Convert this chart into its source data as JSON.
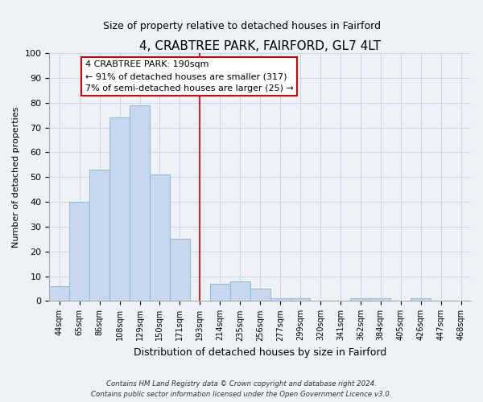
{
  "title": "4, CRABTREE PARK, FAIRFORD, GL7 4LT",
  "subtitle": "Size of property relative to detached houses in Fairford",
  "xlabel": "Distribution of detached houses by size in Fairford",
  "ylabel": "Number of detached properties",
  "bar_labels": [
    "44sqm",
    "65sqm",
    "86sqm",
    "108sqm",
    "129sqm",
    "150sqm",
    "171sqm",
    "193sqm",
    "214sqm",
    "235sqm",
    "256sqm",
    "277sqm",
    "299sqm",
    "320sqm",
    "341sqm",
    "362sqm",
    "384sqm",
    "405sqm",
    "426sqm",
    "447sqm",
    "468sqm"
  ],
  "bar_heights": [
    6,
    40,
    53,
    74,
    79,
    51,
    25,
    0,
    7,
    8,
    5,
    1,
    1,
    0,
    0,
    1,
    1,
    0,
    1,
    0,
    0
  ],
  "bar_color": "#c5d8ee",
  "bar_edge_color": "#9ab8d8",
  "vline_index": 7,
  "vline_color": "#cc0000",
  "annotation_title": "4 CRABTREE PARK: 190sqm",
  "annotation_line1": "← 91% of detached houses are smaller (317)",
  "annotation_line2": "7% of semi-detached houses are larger (25) →",
  "annotation_box_color": "#ffffff",
  "annotation_box_edge": "#cc0000",
  "ylim": [
    0,
    100
  ],
  "yticks": [
    0,
    10,
    20,
    30,
    40,
    50,
    60,
    70,
    80,
    90,
    100
  ],
  "footer1": "Contains HM Land Registry data © Crown copyright and database right 2024.",
  "footer2": "Contains public sector information licensed under the Open Government Licence v3.0.",
  "bg_color": "#eef2f7",
  "plot_bg_color": "#eef2f7",
  "grid_color": "#c8d8e8",
  "title_fontsize": 11,
  "subtitle_fontsize": 9
}
